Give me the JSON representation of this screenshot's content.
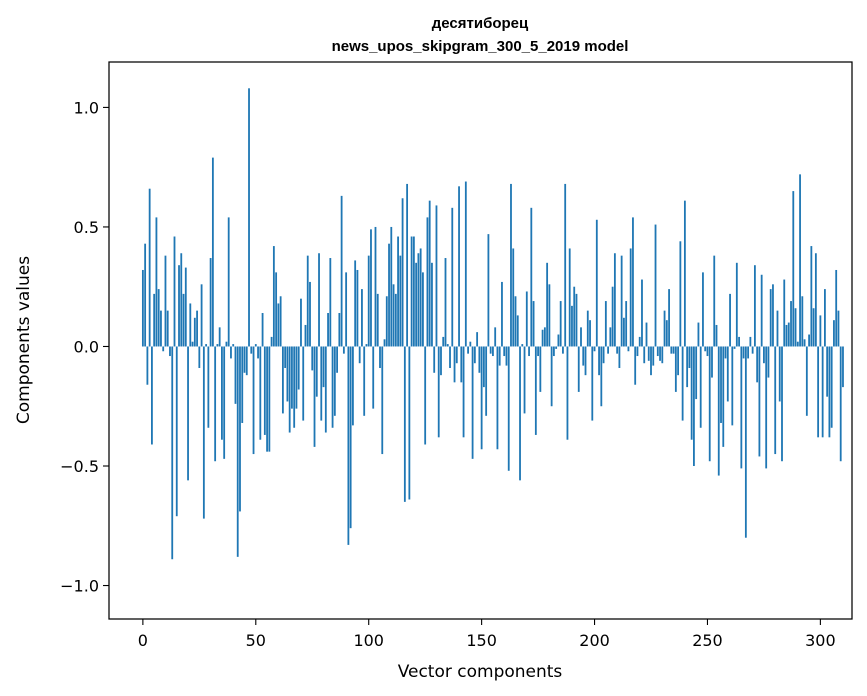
{
  "chart_data": {
    "type": "bar",
    "title_line1": "десятиборец",
    "title_line2": "news_upos_skipgram_300_5_2019 model",
    "xlabel": "Vector components",
    "ylabel": "Components values",
    "xlim": [
      -15,
      314
    ],
    "ylim": [
      -1.14,
      1.19
    ],
    "xticks": [
      0,
      50,
      100,
      150,
      200,
      250,
      300
    ],
    "xtick_labels": [
      "0",
      "50",
      "100",
      "150",
      "200",
      "250",
      "300"
    ],
    "yticks": [
      -1.0,
      -0.5,
      0.0,
      0.5,
      1.0
    ],
    "ytick_labels": [
      "−1.0",
      "−0.5",
      "0.0",
      "0.5",
      "1.0"
    ],
    "bar_color": "#1f77b4",
    "grid": false,
    "values": [
      0.32,
      0.43,
      -0.16,
      0.66,
      -0.41,
      0.22,
      0.54,
      0.24,
      0.15,
      -0.02,
      0.38,
      0.15,
      -0.04,
      -0.89,
      0.46,
      -0.71,
      0.34,
      0.39,
      0.22,
      0.33,
      -0.56,
      0.18,
      0.02,
      0.12,
      0.15,
      -0.09,
      0.26,
      -0.72,
      0.01,
      -0.34,
      0.37,
      0.79,
      -0.48,
      0.01,
      0.08,
      -0.39,
      -0.47,
      0.02,
      0.54,
      -0.05,
      0.01,
      -0.24,
      -0.88,
      -0.69,
      -0.32,
      -0.11,
      -0.12,
      1.08,
      -0.03,
      -0.45,
      0.01,
      -0.05,
      -0.39,
      0.14,
      -0.37,
      -0.44,
      -0.44,
      0.04,
      0.42,
      0.31,
      0.18,
      0.21,
      -0.28,
      -0.09,
      -0.23,
      -0.36,
      -0.26,
      -0.34,
      -0.26,
      -0.18,
      0.2,
      -0.31,
      0.09,
      0.38,
      0.27,
      -0.1,
      -0.42,
      -0.21,
      0.39,
      -0.31,
      -0.17,
      -0.36,
      0.14,
      0.37,
      -0.34,
      -0.29,
      -0.11,
      0.14,
      0.63,
      -0.03,
      0.31,
      -0.83,
      -0.76,
      -0.33,
      0.36,
      0.32,
      -0.07,
      0.24,
      -0.29,
      0.01,
      0.38,
      0.49,
      -0.26,
      0.5,
      0.22,
      -0.09,
      -0.45,
      0.03,
      0.21,
      0.43,
      0.5,
      0.26,
      0.22,
      0.46,
      0.38,
      0.62,
      -0.65,
      0.68,
      -0.64,
      0.46,
      0.46,
      0.35,
      0.39,
      0.41,
      0.31,
      -0.41,
      0.54,
      0.61,
      0.35,
      -0.11,
      0.59,
      -0.38,
      -0.12,
      0.04,
      0.37,
      0.01,
      -0.09,
      0.58,
      -0.15,
      -0.07,
      0.67,
      -0.15,
      -0.38,
      0.69,
      -0.03,
      0.02,
      -0.47,
      -0.07,
      0.06,
      -0.11,
      -0.43,
      -0.17,
      -0.29,
      0.47,
      -0.03,
      -0.04,
      0.08,
      -0.43,
      -0.08,
      0.27,
      -0.04,
      -0.08,
      -0.52,
      0.68,
      0.41,
      0.21,
      0.13,
      -0.56,
      0.01,
      -0.28,
      0.23,
      -0.04,
      0.58,
      0.19,
      -0.37,
      -0.04,
      -0.19,
      0.07,
      0.08,
      0.35,
      0.26,
      -0.25,
      -0.04,
      -0.01,
      0.05,
      0.19,
      -0.03,
      0.68,
      -0.39,
      0.41,
      0.17,
      0.25,
      0.22,
      -0.19,
      0.08,
      -0.08,
      -0.12,
      0.15,
      0.11,
      -0.31,
      -0.02,
      0.53,
      -0.12,
      -0.25,
      -0.07,
      0.19,
      -0.03,
      0.08,
      0.25,
      0.39,
      -0.03,
      -0.09,
      0.38,
      0.12,
      0.19,
      -0.02,
      0.41,
      0.54,
      -0.16,
      -0.04,
      0.04,
      0.28,
      -0.07,
      0.1,
      -0.06,
      -0.12,
      -0.08,
      0.51,
      -0.04,
      -0.06,
      -0.07,
      0.15,
      0.11,
      0.24,
      -0.03,
      -0.03,
      -0.19,
      -0.12,
      0.44,
      -0.31,
      0.61,
      -0.17,
      -0.09,
      -0.39,
      -0.5,
      -0.22,
      0.1,
      -0.34,
      0.31,
      -0.02,
      -0.04,
      -0.48,
      -0.13,
      0.38,
      0.09,
      -0.54,
      -0.32,
      -0.42,
      -0.05,
      -0.23,
      0.22,
      -0.33,
      -0.01,
      0.35,
      0.04,
      -0.51,
      -0.05,
      -0.8,
      -0.05,
      0.04,
      -0.03,
      0.34,
      -0.15,
      -0.46,
      0.3,
      -0.07,
      -0.51,
      -0.13,
      0.24,
      0.26,
      -0.45,
      0.15,
      -0.23,
      -0.48,
      0.28,
      0.09,
      0.1,
      0.19,
      0.65,
      0.16,
      0.02,
      0.72,
      0.21,
      0.03,
      -0.29,
      0.05,
      0.42,
      0.16,
      0.39,
      -0.38,
      0.13,
      -0.38,
      0.24,
      -0.21,
      -0.38,
      -0.34,
      0.11,
      0.32,
      0.15,
      -0.48,
      -0.17
    ]
  }
}
